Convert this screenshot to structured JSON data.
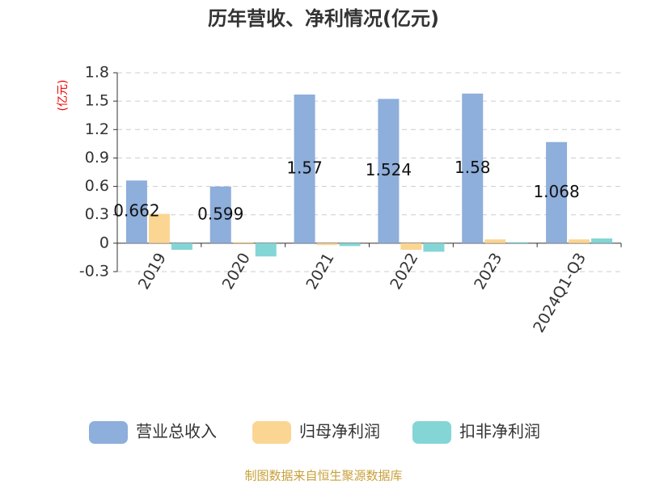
{
  "chart_data": {
    "type": "bar",
    "title": "历年营收、净利情况(亿元)",
    "y_label": "(亿元)",
    "categories": [
      "2019",
      "2020",
      "2021",
      "2022",
      "2023",
      "2024Q1-Q3"
    ],
    "series": [
      {
        "name": "营业总收入",
        "color": "#8eaedb",
        "values": [
          0.662,
          0.599,
          1.57,
          1.524,
          1.58,
          1.068
        ]
      },
      {
        "name": "归母净利润",
        "color": "#fbd592",
        "values": [
          0.31,
          0.01,
          -0.02,
          -0.07,
          0.04,
          0.04
        ]
      },
      {
        "name": "扣非净利润",
        "color": "#84d5d6",
        "values": [
          -0.07,
          -0.14,
          -0.03,
          -0.09,
          0.01,
          0.05
        ]
      }
    ],
    "labeled_series": 0,
    "ylim": [
      -0.3,
      1.8
    ],
    "yticks": [
      -0.3,
      0,
      0.3,
      0.6,
      0.9,
      1.2,
      1.5,
      1.8
    ],
    "grid": true,
    "source": "制图数据来自恒生聚源数据库"
  }
}
